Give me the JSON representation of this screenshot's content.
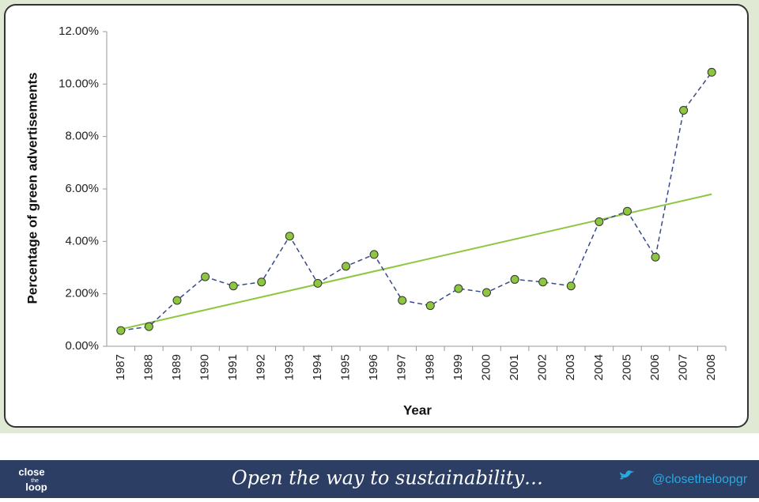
{
  "chart_data": {
    "type": "line",
    "x_label": "Year",
    "y_label": "Percentage of green advertisements",
    "categories": [
      "1987",
      "1988",
      "1989",
      "1990",
      "1991",
      "1992",
      "1993",
      "1994",
      "1995",
      "1996",
      "1997",
      "1998",
      "1999",
      "2000",
      "2001",
      "2002",
      "2003",
      "2004",
      "2005",
      "2006",
      "2007",
      "2008"
    ],
    "series": [
      {
        "color": "#3a4a8a",
        "marker_color": "#8dc63f",
        "values": [
          0.6,
          0.75,
          1.75,
          2.65,
          2.3,
          2.45,
          4.2,
          2.4,
          3.05,
          3.5,
          1.75,
          1.55,
          2.2,
          2.05,
          2.55,
          2.45,
          2.3,
          4.75,
          5.15,
          3.4,
          9.0,
          10.45
        ]
      }
    ],
    "trendline": {
      "color": "#8dc63f",
      "values": [
        0.65,
        5.8
      ]
    },
    "ylim": [
      0,
      12
    ],
    "yticks": [
      {
        "value": 0,
        "label": "0.00%"
      },
      {
        "value": 2,
        "label": "2.00%"
      },
      {
        "value": 4,
        "label": "4.00%"
      },
      {
        "value": 6,
        "label": "6.00%"
      },
      {
        "value": 8,
        "label": "8.00%"
      },
      {
        "value": 10,
        "label": "10.00%"
      },
      {
        "value": 12,
        "label": "12.00%"
      }
    ]
  },
  "footer": {
    "logo_top": "close",
    "logo_mid": "the",
    "logo_bottom": "loop",
    "tagline": "Open the way to sustainability…",
    "handle": "@closetheloopgr"
  }
}
